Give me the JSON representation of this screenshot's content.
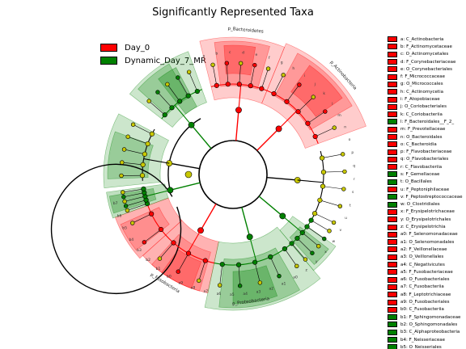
{
  "title": "Significantly Represented Taxa",
  "legend": [
    {
      "label": "Day_0",
      "color": "#ff0000"
    },
    {
      "label": "Dynamic_Day_7_MR",
      "color": "#008000"
    }
  ],
  "colors": {
    "day0": "#ff0000",
    "dyn7": "#008000",
    "nonsig": "#c8c800"
  },
  "key": [
    {
      "text": "a: C_Actinobacteria",
      "group": "day0"
    },
    {
      "text": "b: F_Actinomycetaceae",
      "group": "day0"
    },
    {
      "text": "c: O_Actinomycetales",
      "group": "day0"
    },
    {
      "text": "d: F_Corynebacteriaceae",
      "group": "day0"
    },
    {
      "text": "e: O_Corynebacteriales",
      "group": "day0"
    },
    {
      "text": "f: F_Micrococcaceae",
      "group": "day0"
    },
    {
      "text": "g: O_Micrococcales",
      "group": "day0"
    },
    {
      "text": "h: C_Actinomycetia",
      "group": "day0"
    },
    {
      "text": "i: F_Atopobiaceae",
      "group": "day0"
    },
    {
      "text": "j: O_Coriobacteriales",
      "group": "day0"
    },
    {
      "text": "k: C_Coriobacteriia",
      "group": "day0"
    },
    {
      "text": "l: F_Bacteroidales__F_2_",
      "group": "dyn7"
    },
    {
      "text": "m: F_Prevotellaceae",
      "group": "day0"
    },
    {
      "text": "n: O_Bacteroidales",
      "group": "day0"
    },
    {
      "text": "o: C_Bacteroidia",
      "group": "day0"
    },
    {
      "text": "p: F_Flavobacteriaceae",
      "group": "day0"
    },
    {
      "text": "q: O_Flavobacteriales",
      "group": "day0"
    },
    {
      "text": "r: C_Flavobacteriia",
      "group": "day0"
    },
    {
      "text": "s: F_Gemellaceae",
      "group": "dyn7"
    },
    {
      "text": "t: O_Bacillales",
      "group": "dyn7"
    },
    {
      "text": "u: F_Peptoniphilaceae",
      "group": "day0"
    },
    {
      "text": "v: F_Peptostreptococcaceae",
      "group": "dyn7"
    },
    {
      "text": "w: O_Clostridiales",
      "group": "dyn7"
    },
    {
      "text": "x: F_Erysipelotrichaceae",
      "group": "day0"
    },
    {
      "text": "y: O_Erysipelotrichales",
      "group": "day0"
    },
    {
      "text": "z: C_Erysipelotrichia",
      "group": "day0"
    },
    {
      "text": "a0: F_Selenomonadaceae",
      "group": "day0"
    },
    {
      "text": "a1: O_Selenomonadales",
      "group": "day0"
    },
    {
      "text": "a2: F_Veillonellaceae",
      "group": "day0"
    },
    {
      "text": "a3: O_Veillonellales",
      "group": "day0"
    },
    {
      "text": "a4: C_Negativicutes",
      "group": "day0"
    },
    {
      "text": "a5: F_Fusobacteriaceae",
      "group": "day0"
    },
    {
      "text": "a6: O_Fusobacteriales",
      "group": "day0"
    },
    {
      "text": "a7: C_Fusobacteriia",
      "group": "day0"
    },
    {
      "text": "a8: F_Leptotrichiaceae",
      "group": "day0"
    },
    {
      "text": "a9: O_Fusobacteriales",
      "group": "day0"
    },
    {
      "text": "b0: C_Fusobacteriia",
      "group": "day0"
    },
    {
      "text": "b1: F_Sphingomonadaceae",
      "group": "dyn7"
    },
    {
      "text": "b2: O_Sphingomonadales",
      "group": "dyn7"
    },
    {
      "text": "b3: C_Alphaproteobacteria",
      "group": "dyn7"
    },
    {
      "text": "b4: F_Neisseriaceae",
      "group": "dyn7"
    },
    {
      "text": "b5: O_Neisseriales",
      "group": "dyn7"
    },
    {
      "text": "b6: C_Betaproteobacteria",
      "group": "dyn7"
    },
    {
      "text": "b7: F_Pasteurellaceae",
      "group": "dyn7"
    }
  ],
  "clades": [
    {
      "label": "p_Bacteroidetes",
      "group": "day0"
    },
    {
      "label": "p_Actinobacteria",
      "group": "day0"
    },
    {
      "label": "p_Proteobacteria",
      "group": "dyn7"
    },
    {
      "label": "p_Fusobacteria",
      "group": "day0"
    }
  ],
  "clade_letters": [
    "a",
    "b",
    "c",
    "d",
    "e",
    "f",
    "g",
    "h",
    "i",
    "j",
    "k",
    "l",
    "m",
    "n",
    "o",
    "p",
    "q",
    "r",
    "s",
    "t",
    "u",
    "v",
    "w",
    "x",
    "y",
    "z",
    "a0",
    "a1",
    "a2",
    "a3",
    "a4",
    "a5",
    "a6",
    "a7",
    "a8",
    "a9",
    "b0",
    "b1",
    "b2",
    "b3",
    "b4",
    "b5",
    "b6",
    "b7"
  ]
}
